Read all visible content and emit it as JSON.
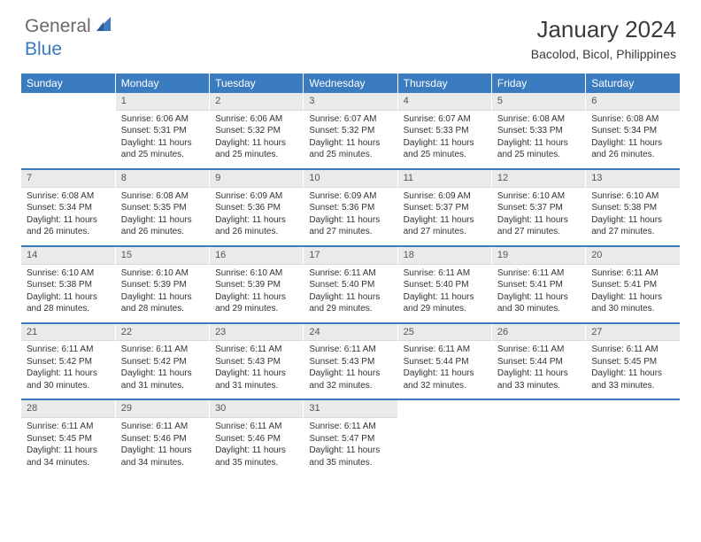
{
  "logo": {
    "general": "General",
    "blue": "Blue"
  },
  "title": "January 2024",
  "location": "Bacolod, Bicol, Philippines",
  "weekdays": [
    "Sunday",
    "Monday",
    "Tuesday",
    "Wednesday",
    "Thursday",
    "Friday",
    "Saturday"
  ],
  "colors": {
    "header_bg": "#3b7bbf",
    "header_text": "#ffffff",
    "daynum_bg": "#eaeaea",
    "row_border": "#3b7bbf"
  },
  "weeks": [
    [
      {
        "day": "",
        "sunrise": "",
        "sunset": "",
        "daylight": ""
      },
      {
        "day": "1",
        "sunrise": "Sunrise: 6:06 AM",
        "sunset": "Sunset: 5:31 PM",
        "daylight": "Daylight: 11 hours and 25 minutes."
      },
      {
        "day": "2",
        "sunrise": "Sunrise: 6:06 AM",
        "sunset": "Sunset: 5:32 PM",
        "daylight": "Daylight: 11 hours and 25 minutes."
      },
      {
        "day": "3",
        "sunrise": "Sunrise: 6:07 AM",
        "sunset": "Sunset: 5:32 PM",
        "daylight": "Daylight: 11 hours and 25 minutes."
      },
      {
        "day": "4",
        "sunrise": "Sunrise: 6:07 AM",
        "sunset": "Sunset: 5:33 PM",
        "daylight": "Daylight: 11 hours and 25 minutes."
      },
      {
        "day": "5",
        "sunrise": "Sunrise: 6:08 AM",
        "sunset": "Sunset: 5:33 PM",
        "daylight": "Daylight: 11 hours and 25 minutes."
      },
      {
        "day": "6",
        "sunrise": "Sunrise: 6:08 AM",
        "sunset": "Sunset: 5:34 PM",
        "daylight": "Daylight: 11 hours and 26 minutes."
      }
    ],
    [
      {
        "day": "7",
        "sunrise": "Sunrise: 6:08 AM",
        "sunset": "Sunset: 5:34 PM",
        "daylight": "Daylight: 11 hours and 26 minutes."
      },
      {
        "day": "8",
        "sunrise": "Sunrise: 6:08 AM",
        "sunset": "Sunset: 5:35 PM",
        "daylight": "Daylight: 11 hours and 26 minutes."
      },
      {
        "day": "9",
        "sunrise": "Sunrise: 6:09 AM",
        "sunset": "Sunset: 5:36 PM",
        "daylight": "Daylight: 11 hours and 26 minutes."
      },
      {
        "day": "10",
        "sunrise": "Sunrise: 6:09 AM",
        "sunset": "Sunset: 5:36 PM",
        "daylight": "Daylight: 11 hours and 27 minutes."
      },
      {
        "day": "11",
        "sunrise": "Sunrise: 6:09 AM",
        "sunset": "Sunset: 5:37 PM",
        "daylight": "Daylight: 11 hours and 27 minutes."
      },
      {
        "day": "12",
        "sunrise": "Sunrise: 6:10 AM",
        "sunset": "Sunset: 5:37 PM",
        "daylight": "Daylight: 11 hours and 27 minutes."
      },
      {
        "day": "13",
        "sunrise": "Sunrise: 6:10 AM",
        "sunset": "Sunset: 5:38 PM",
        "daylight": "Daylight: 11 hours and 27 minutes."
      }
    ],
    [
      {
        "day": "14",
        "sunrise": "Sunrise: 6:10 AM",
        "sunset": "Sunset: 5:38 PM",
        "daylight": "Daylight: 11 hours and 28 minutes."
      },
      {
        "day": "15",
        "sunrise": "Sunrise: 6:10 AM",
        "sunset": "Sunset: 5:39 PM",
        "daylight": "Daylight: 11 hours and 28 minutes."
      },
      {
        "day": "16",
        "sunrise": "Sunrise: 6:10 AM",
        "sunset": "Sunset: 5:39 PM",
        "daylight": "Daylight: 11 hours and 29 minutes."
      },
      {
        "day": "17",
        "sunrise": "Sunrise: 6:11 AM",
        "sunset": "Sunset: 5:40 PM",
        "daylight": "Daylight: 11 hours and 29 minutes."
      },
      {
        "day": "18",
        "sunrise": "Sunrise: 6:11 AM",
        "sunset": "Sunset: 5:40 PM",
        "daylight": "Daylight: 11 hours and 29 minutes."
      },
      {
        "day": "19",
        "sunrise": "Sunrise: 6:11 AM",
        "sunset": "Sunset: 5:41 PM",
        "daylight": "Daylight: 11 hours and 30 minutes."
      },
      {
        "day": "20",
        "sunrise": "Sunrise: 6:11 AM",
        "sunset": "Sunset: 5:41 PM",
        "daylight": "Daylight: 11 hours and 30 minutes."
      }
    ],
    [
      {
        "day": "21",
        "sunrise": "Sunrise: 6:11 AM",
        "sunset": "Sunset: 5:42 PM",
        "daylight": "Daylight: 11 hours and 30 minutes."
      },
      {
        "day": "22",
        "sunrise": "Sunrise: 6:11 AM",
        "sunset": "Sunset: 5:42 PM",
        "daylight": "Daylight: 11 hours and 31 minutes."
      },
      {
        "day": "23",
        "sunrise": "Sunrise: 6:11 AM",
        "sunset": "Sunset: 5:43 PM",
        "daylight": "Daylight: 11 hours and 31 minutes."
      },
      {
        "day": "24",
        "sunrise": "Sunrise: 6:11 AM",
        "sunset": "Sunset: 5:43 PM",
        "daylight": "Daylight: 11 hours and 32 minutes."
      },
      {
        "day": "25",
        "sunrise": "Sunrise: 6:11 AM",
        "sunset": "Sunset: 5:44 PM",
        "daylight": "Daylight: 11 hours and 32 minutes."
      },
      {
        "day": "26",
        "sunrise": "Sunrise: 6:11 AM",
        "sunset": "Sunset: 5:44 PM",
        "daylight": "Daylight: 11 hours and 33 minutes."
      },
      {
        "day": "27",
        "sunrise": "Sunrise: 6:11 AM",
        "sunset": "Sunset: 5:45 PM",
        "daylight": "Daylight: 11 hours and 33 minutes."
      }
    ],
    [
      {
        "day": "28",
        "sunrise": "Sunrise: 6:11 AM",
        "sunset": "Sunset: 5:45 PM",
        "daylight": "Daylight: 11 hours and 34 minutes."
      },
      {
        "day": "29",
        "sunrise": "Sunrise: 6:11 AM",
        "sunset": "Sunset: 5:46 PM",
        "daylight": "Daylight: 11 hours and 34 minutes."
      },
      {
        "day": "30",
        "sunrise": "Sunrise: 6:11 AM",
        "sunset": "Sunset: 5:46 PM",
        "daylight": "Daylight: 11 hours and 35 minutes."
      },
      {
        "day": "31",
        "sunrise": "Sunrise: 6:11 AM",
        "sunset": "Sunset: 5:47 PM",
        "daylight": "Daylight: 11 hours and 35 minutes."
      },
      {
        "day": "",
        "sunrise": "",
        "sunset": "",
        "daylight": ""
      },
      {
        "day": "",
        "sunrise": "",
        "sunset": "",
        "daylight": ""
      },
      {
        "day": "",
        "sunrise": "",
        "sunset": "",
        "daylight": ""
      }
    ]
  ]
}
